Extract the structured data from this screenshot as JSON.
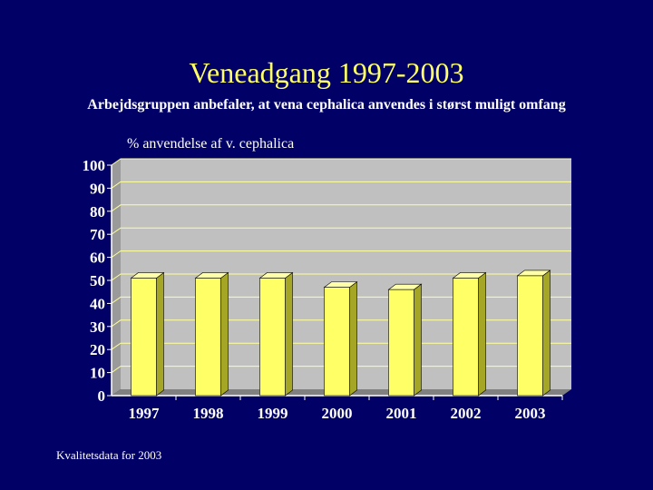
{
  "slide": {
    "title": "Veneadgang 1997-2003",
    "subtitle": "Arbejdsgruppen anbefaler, at vena cephalica anvendes i størst muligt omfang",
    "footer": "Kvalitetsdata for 2003"
  },
  "colors": {
    "background": "#000066",
    "title": "#ffff66",
    "bar_front": "#ffff66",
    "plot_area": "#c0c0c0",
    "gridline": "#ffff99",
    "axis_text": "#ffffff"
  },
  "chart_data": {
    "type": "bar",
    "title": "% anvendelse af  v. cephalica",
    "xlabel": "",
    "ylabel": "",
    "categories": [
      "1997",
      "1998",
      "1999",
      "2000",
      "2001",
      "2002",
      "2003"
    ],
    "series": [
      {
        "values": [
          51,
          51,
          51,
          47,
          46,
          51,
          52
        ]
      }
    ],
    "ylim": [
      0,
      100
    ],
    "yticks": [
      "0",
      "10",
      "20",
      "30",
      "40",
      "50",
      "60",
      "70",
      "80",
      "90",
      "100"
    ],
    "grid": true,
    "legend": "none"
  }
}
